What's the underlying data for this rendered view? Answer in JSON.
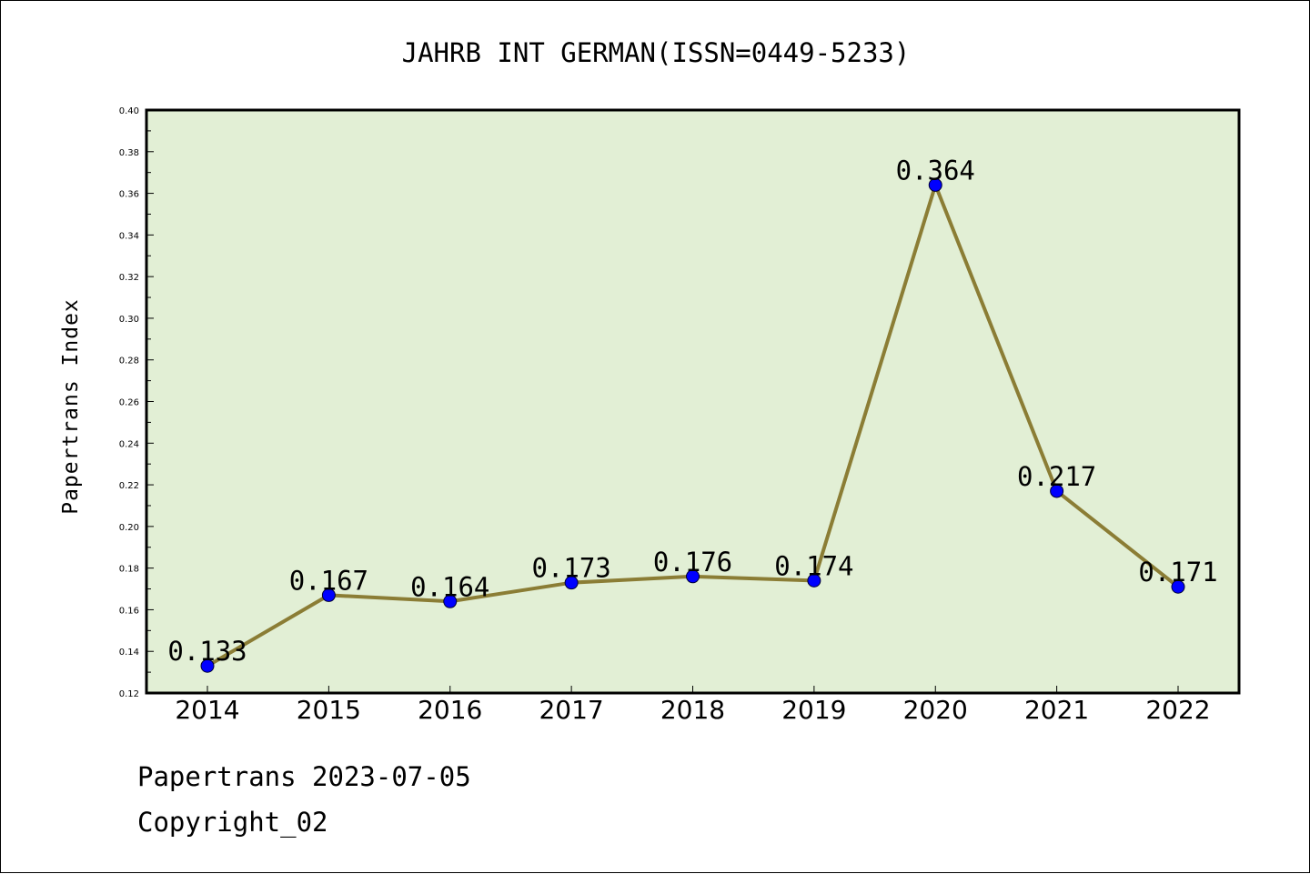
{
  "chart_data": {
    "type": "line",
    "title": "JAHRB INT GERMAN(ISSN=0449-5233)",
    "xlabel": "",
    "ylabel": "Papertrans Index",
    "categories": [
      "2014",
      "2015",
      "2016",
      "2017",
      "2018",
      "2019",
      "2020",
      "2021",
      "2022"
    ],
    "series": [
      {
        "values": [
          0.133,
          0.167,
          0.164,
          0.173,
          0.176,
          0.174,
          0.364,
          0.217,
          0.171
        ],
        "labels": [
          "0.133",
          "0.167",
          "0.164",
          "0.173",
          "0.176",
          "0.174",
          "0.364",
          "0.217",
          "0.171"
        ]
      }
    ],
    "ylim": [
      0.12,
      0.4
    ],
    "yticks": [
      "0.12",
      "0.14",
      "0.16",
      "0.18",
      "0.20",
      "0.22",
      "0.24",
      "0.26",
      "0.28",
      "0.30",
      "0.32",
      "0.34",
      "0.36",
      "0.38",
      "0.40"
    ],
    "grid": false,
    "legend": "none",
    "colors": {
      "plot_background": "#e2efd5",
      "line": "#8b7d35",
      "marker": "#0000ff"
    }
  },
  "footer": {
    "date_line": "Papertrans 2023-07-05",
    "copyright": "Copyright_02"
  }
}
